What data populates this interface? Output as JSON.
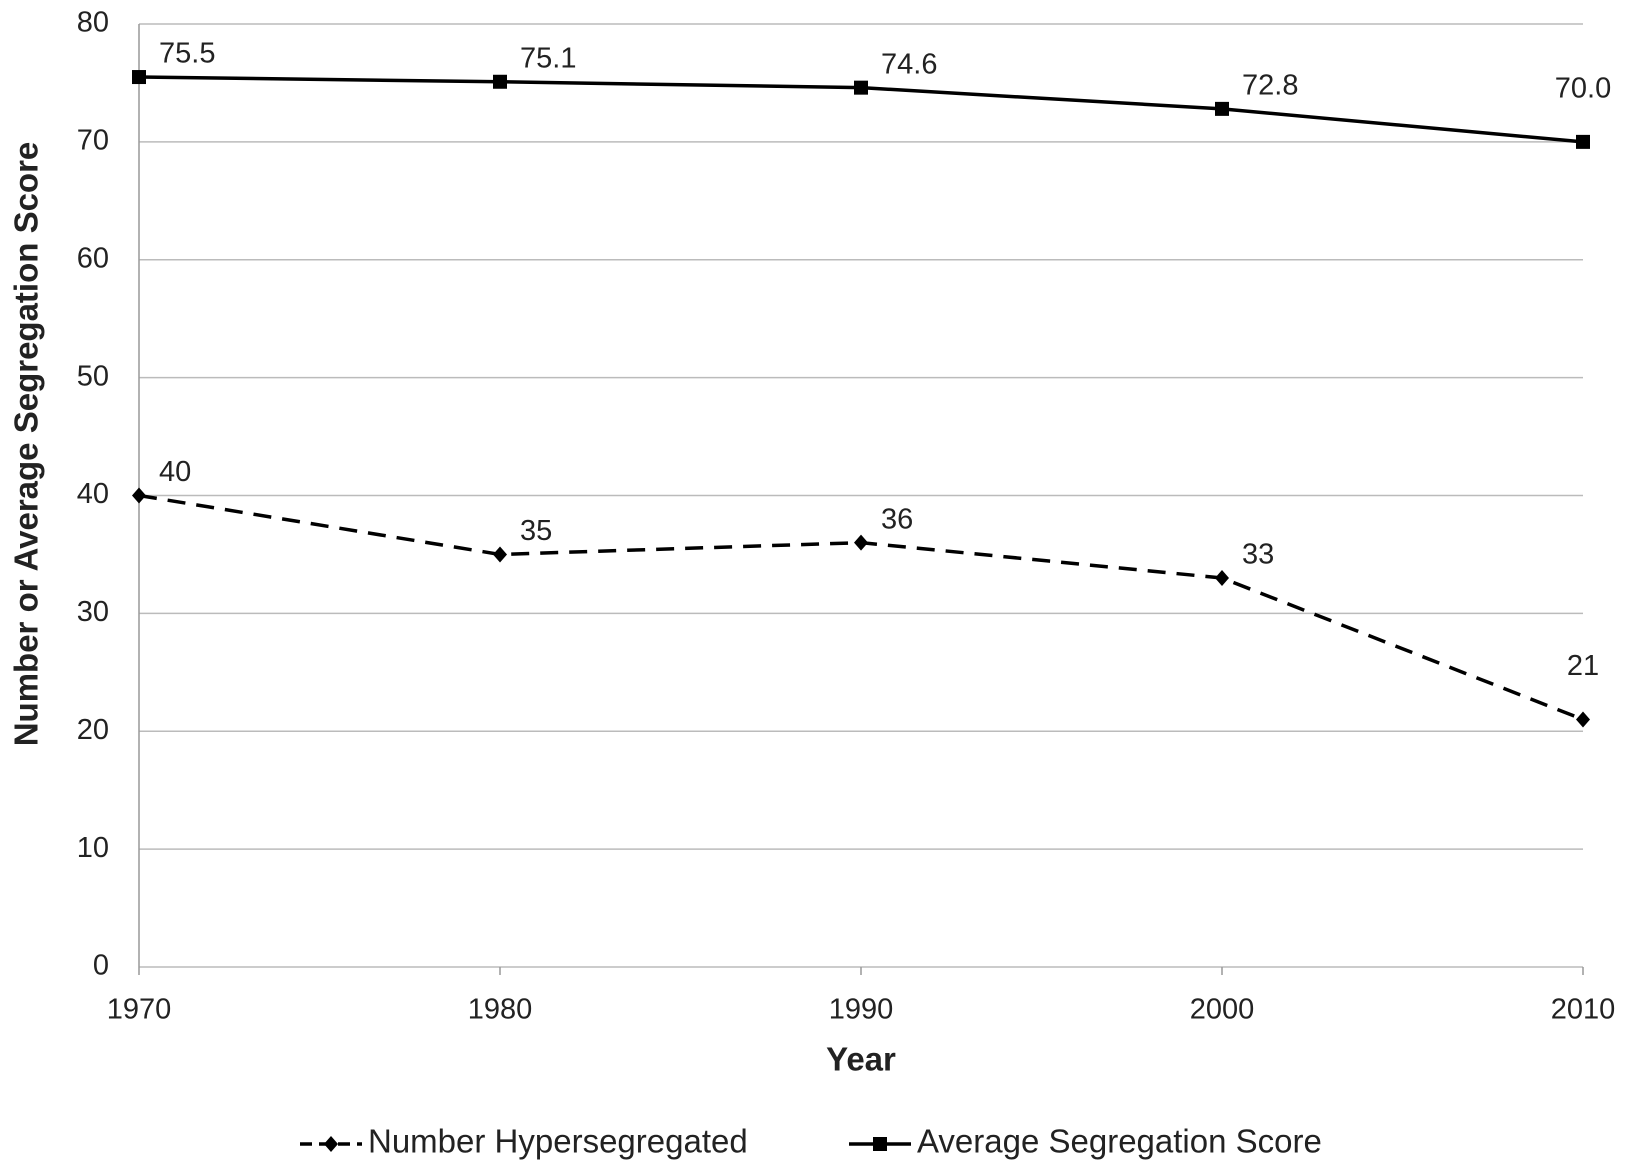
{
  "chart_data": {
    "type": "line",
    "x_label": "Year",
    "y_label": "Number or Average Segregation Score",
    "x": [
      1970,
      1980,
      1990,
      2000,
      2010
    ],
    "xlim": [
      1970,
      2010
    ],
    "xticks": [
      1970,
      1980,
      1990,
      2000,
      2010
    ],
    "ylim": [
      0,
      80
    ],
    "yticks": [
      0,
      10,
      20,
      30,
      40,
      50,
      60,
      70,
      80
    ],
    "grid": true,
    "legend": "bottom",
    "series": [
      {
        "name": "Number Hypersegregated",
        "color": "#000000",
        "line_style": "dashed",
        "marker": "diamond",
        "values": [
          40,
          35,
          36,
          33,
          21
        ]
      },
      {
        "name": "Average Segregation Score",
        "color": "#000000",
        "line_style": "solid",
        "marker": "square",
        "values": [
          75.5,
          75.1,
          74.6,
          72.8,
          70.0
        ],
        "value_labels": [
          "75.5",
          "75.1",
          "74.6",
          "72.8",
          "70.0"
        ]
      }
    ]
  }
}
